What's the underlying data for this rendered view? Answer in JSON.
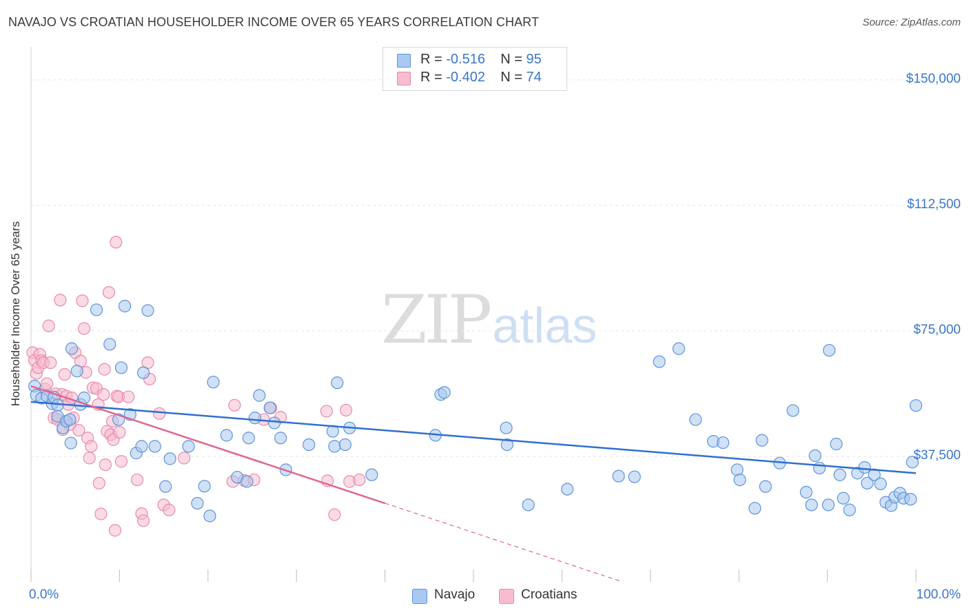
{
  "title": "NAVAJO VS CROATIAN HOUSEHOLDER INCOME OVER 65 YEARS CORRELATION CHART",
  "source": "Source: ZipAtlas.com",
  "watermark": {
    "zip": "ZIP",
    "atlas": "atlas"
  },
  "colors": {
    "navajo_fill": "#aac8ef",
    "navajo_stroke": "#5b93d8",
    "navajo_line": "#2f6fd0",
    "croatians_fill": "#f6bcd0",
    "croatians_stroke": "#e88aa9",
    "croatians_line": "#e0648e",
    "grid": "#e6e6e6",
    "tick_label": "#3a76c8"
  },
  "legend": {
    "rows": [
      {
        "r_label": "R =",
        "r_value": "-0.516",
        "n_label": "N =",
        "n_value": "95"
      },
      {
        "r_label": "R =",
        "r_value": "-0.402",
        "n_label": "N =",
        "n_value": "74"
      }
    ]
  },
  "chart_data": {
    "type": "scatter",
    "title": "NAVAJO VS CROATIAN HOUSEHOLDER INCOME OVER 65 YEARS CORRELATION CHART",
    "xlabel": "",
    "ylabel": "Householder Income Over 65 years",
    "xlim": [
      0,
      100
    ],
    "ylim": [
      0,
      158000
    ],
    "x_tick_labels": [
      "0.0%",
      "100.0%"
    ],
    "y_ticks": [
      37500,
      75000,
      112500,
      150000
    ],
    "y_tick_labels": [
      "$37,500",
      "$75,000",
      "$112,500",
      "$150,000"
    ],
    "grid": true,
    "legend_position": "top-center",
    "series": [
      {
        "name": "Navajo",
        "r": -0.516,
        "n": 95,
        "trend": {
          "x": [
            0,
            100
          ],
          "y": [
            53800,
            32500
          ],
          "dashed_from": null
        },
        "points": [
          [
            0.4,
            58500
          ],
          [
            0.6,
            55800
          ],
          [
            1.2,
            54900
          ],
          [
            1.8,
            55500
          ],
          [
            2.4,
            53200
          ],
          [
            2.6,
            55200
          ],
          [
            3.0,
            52800
          ],
          [
            3.0,
            49500
          ],
          [
            3.6,
            46000
          ],
          [
            4.0,
            48000
          ],
          [
            4.4,
            48500
          ],
          [
            4.5,
            41500
          ],
          [
            4.6,
            69700
          ],
          [
            5.2,
            63000
          ],
          [
            5.6,
            53000
          ],
          [
            6.0,
            55000
          ],
          [
            7.4,
            81300
          ],
          [
            8.9,
            71000
          ],
          [
            9.9,
            48500
          ],
          [
            10.2,
            64000
          ],
          [
            10.6,
            82400
          ],
          [
            11.2,
            50000
          ],
          [
            11.9,
            38500
          ],
          [
            12.5,
            40500
          ],
          [
            12.7,
            62500
          ],
          [
            13.2,
            81100
          ],
          [
            14.0,
            40500
          ],
          [
            15.2,
            28500
          ],
          [
            15.7,
            36800
          ],
          [
            17.8,
            40500
          ],
          [
            18.8,
            23500
          ],
          [
            19.6,
            28600
          ],
          [
            20.2,
            19700
          ],
          [
            20.6,
            59700
          ],
          [
            22.1,
            43800
          ],
          [
            23.3,
            31300
          ],
          [
            24.4,
            30000
          ],
          [
            24.6,
            43000
          ],
          [
            25.3,
            49000
          ],
          [
            25.8,
            55700
          ],
          [
            27.0,
            52000
          ],
          [
            27.5,
            47500
          ],
          [
            28.2,
            43000
          ],
          [
            28.8,
            33500
          ],
          [
            31.4,
            41000
          ],
          [
            34.1,
            45000
          ],
          [
            34.3,
            40500
          ],
          [
            34.6,
            59500
          ],
          [
            35.5,
            41000
          ],
          [
            36.0,
            46000
          ],
          [
            38.5,
            32000
          ],
          [
            46.3,
            56000
          ],
          [
            46.7,
            56600
          ],
          [
            45.7,
            43800
          ],
          [
            53.7,
            46000
          ],
          [
            53.8,
            41000
          ],
          [
            56.2,
            23000
          ],
          [
            60.6,
            27700
          ],
          [
            66.4,
            31600
          ],
          [
            68.2,
            31400
          ],
          [
            71.0,
            65800
          ],
          [
            73.2,
            69700
          ],
          [
            75.1,
            48500
          ],
          [
            77.1,
            42000
          ],
          [
            78.2,
            41600
          ],
          [
            79.8,
            33500
          ],
          [
            80.1,
            30500
          ],
          [
            81.8,
            22000
          ],
          [
            82.6,
            42300
          ],
          [
            83.0,
            28500
          ],
          [
            84.6,
            35500
          ],
          [
            86.1,
            51200
          ],
          [
            87.6,
            26800
          ],
          [
            88.2,
            23000
          ],
          [
            88.6,
            37700
          ],
          [
            89.1,
            34000
          ],
          [
            90.1,
            23000
          ],
          [
            90.2,
            69200
          ],
          [
            91.0,
            41200
          ],
          [
            91.4,
            32000
          ],
          [
            91.8,
            25000
          ],
          [
            92.5,
            21500
          ],
          [
            93.4,
            32500
          ],
          [
            94.2,
            34200
          ],
          [
            94.5,
            29500
          ],
          [
            95.3,
            32000
          ],
          [
            96.0,
            29300
          ],
          [
            96.6,
            23800
          ],
          [
            97.2,
            22800
          ],
          [
            97.6,
            25300
          ],
          [
            98.2,
            26500
          ],
          [
            98.6,
            25000
          ],
          [
            99.4,
            24700
          ],
          [
            99.6,
            35800
          ],
          [
            100.0,
            52700
          ]
        ]
      },
      {
        "name": "Croatians",
        "r": -0.402,
        "n": 74,
        "trend": {
          "x": [
            0,
            40,
            100
          ],
          "y": [
            58500,
            23500,
            -29000
          ],
          "dashed_from": 40
        },
        "points": [
          [
            0.2,
            68500
          ],
          [
            0.4,
            66200
          ],
          [
            0.6,
            62300
          ],
          [
            0.8,
            64000
          ],
          [
            1.0,
            68000
          ],
          [
            1.2,
            66100
          ],
          [
            1.4,
            65500
          ],
          [
            1.6,
            57600
          ],
          [
            1.8,
            59200
          ],
          [
            2.0,
            76500
          ],
          [
            2.2,
            65500
          ],
          [
            2.6,
            49000
          ],
          [
            2.8,
            56200
          ],
          [
            3.0,
            48500
          ],
          [
            3.3,
            84200
          ],
          [
            3.5,
            56000
          ],
          [
            3.8,
            62000
          ],
          [
            3.6,
            45500
          ],
          [
            4.0,
            55500
          ],
          [
            4.2,
            53000
          ],
          [
            4.4,
            47000
          ],
          [
            4.6,
            55000
          ],
          [
            4.8,
            49000
          ],
          [
            5.0,
            68500
          ],
          [
            5.4,
            45300
          ],
          [
            5.6,
            66000
          ],
          [
            5.8,
            84000
          ],
          [
            6.0,
            75700
          ],
          [
            6.2,
            62600
          ],
          [
            6.4,
            43000
          ],
          [
            6.6,
            37000
          ],
          [
            6.8,
            40500
          ],
          [
            7.0,
            58000
          ],
          [
            7.4,
            57800
          ],
          [
            7.6,
            53000
          ],
          [
            7.7,
            29500
          ],
          [
            7.9,
            20300
          ],
          [
            8.2,
            56000
          ],
          [
            8.3,
            63500
          ],
          [
            8.4,
            35000
          ],
          [
            8.6,
            45000
          ],
          [
            8.8,
            86500
          ],
          [
            9.0,
            44000
          ],
          [
            9.2,
            48000
          ],
          [
            9.3,
            42500
          ],
          [
            9.5,
            15400
          ],
          [
            9.7,
            55500
          ],
          [
            9.9,
            55300
          ],
          [
            10.0,
            44700
          ],
          [
            10.2,
            36000
          ],
          [
            9.6,
            101500
          ],
          [
            11.0,
            55300
          ],
          [
            12.0,
            30500
          ],
          [
            12.5,
            20400
          ],
          [
            12.7,
            18300
          ],
          [
            13.2,
            65500
          ],
          [
            13.4,
            60600
          ],
          [
            14.5,
            50300
          ],
          [
            15.0,
            23000
          ],
          [
            15.6,
            21500
          ],
          [
            17.3,
            37000
          ],
          [
            22.8,
            30000
          ],
          [
            23.0,
            52800
          ],
          [
            24.1,
            30300
          ],
          [
            25.2,
            30500
          ],
          [
            26.3,
            48500
          ],
          [
            27.1,
            52000
          ],
          [
            28.2,
            49200
          ],
          [
            33.4,
            51000
          ],
          [
            33.5,
            30200
          ],
          [
            34.3,
            20100
          ],
          [
            35.6,
            51300
          ],
          [
            36.0,
            30000
          ],
          [
            37.1,
            30500
          ]
        ]
      }
    ]
  },
  "bottom_legend": [
    "Navajo",
    "Croatians"
  ]
}
